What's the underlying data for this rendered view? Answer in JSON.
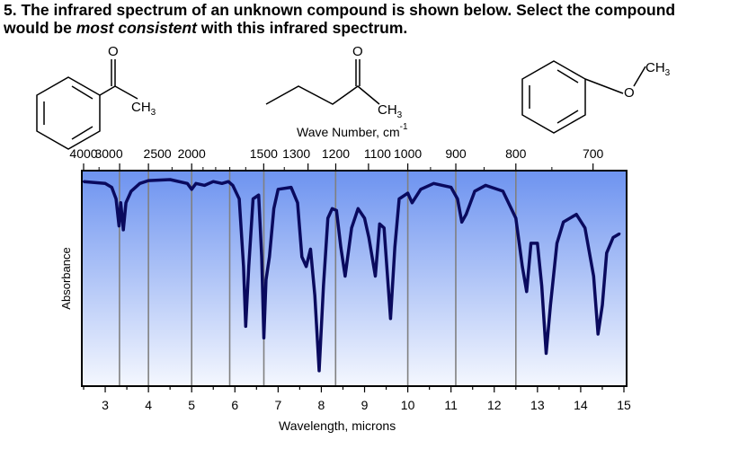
{
  "question": {
    "number": "5.",
    "part1": "The infrared spectrum of an unknown compound is shown below.  Select the compound would be ",
    "emphasis": "most consistent",
    "part2": " with this infrared spectrum."
  },
  "structures": [
    {
      "name": "acetophenone",
      "label": "CH",
      "sub": "3",
      "oxygen": "O"
    },
    {
      "name": "2-pentanone",
      "label": "CH",
      "sub": "3",
      "oxygen": "O"
    },
    {
      "name": "anisole",
      "label": "CH",
      "sub": "3",
      "oxygen": "O"
    }
  ],
  "chart_data": {
    "type": "line",
    "title": "",
    "top_axis_label": "Wave Number, cm",
    "top_axis_exponent": "-1",
    "xlabel": "Wavelength, microns",
    "ylabel": "Absorbance",
    "xlim": [
      2.5,
      15
    ],
    "x_ticks": [
      "3",
      "4",
      "5",
      "6",
      "7",
      "8",
      "9",
      "10",
      "11",
      "12",
      "13",
      "14",
      "15"
    ],
    "top_ticks": [
      "4000",
      "3000",
      "2500",
      "2000",
      "1500",
      "1300",
      "1200",
      "1100",
      "1000",
      "900",
      "800",
      "700"
    ],
    "top_tick_values": [
      4000,
      3000,
      2500,
      2000,
      1500,
      1300,
      1200,
      1100,
      1000,
      900,
      800,
      700
    ],
    "vertical_lines_microns": [
      3.33,
      4.0,
      5.0,
      5.88,
      6.67,
      8.33,
      10.0,
      11.11,
      12.5
    ],
    "colors": {
      "line": "#0a0a5e",
      "bg_top": "#6d93f0",
      "bg_bottom": "#f4f7fe",
      "grid": "#808080"
    },
    "series": [
      {
        "values": [
          [
            2.5,
            0.01
          ],
          [
            3.0,
            0.02
          ],
          [
            3.15,
            0.04
          ],
          [
            3.25,
            0.1
          ],
          [
            3.32,
            0.24
          ],
          [
            3.36,
            0.12
          ],
          [
            3.42,
            0.26
          ],
          [
            3.48,
            0.12
          ],
          [
            3.6,
            0.06
          ],
          [
            3.8,
            0.02
          ],
          [
            4.0,
            0.005
          ],
          [
            4.5,
            0.0
          ],
          [
            4.9,
            0.02
          ],
          [
            5.0,
            0.05
          ],
          [
            5.1,
            0.02
          ],
          [
            5.3,
            0.03
          ],
          [
            5.5,
            0.01
          ],
          [
            5.7,
            0.02
          ],
          [
            5.85,
            0.01
          ],
          [
            5.95,
            0.03
          ],
          [
            6.1,
            0.1
          ],
          [
            6.2,
            0.45
          ],
          [
            6.25,
            0.76
          ],
          [
            6.32,
            0.45
          ],
          [
            6.42,
            0.1
          ],
          [
            6.55,
            0.08
          ],
          [
            6.62,
            0.4
          ],
          [
            6.67,
            0.82
          ],
          [
            6.72,
            0.52
          ],
          [
            6.8,
            0.4
          ],
          [
            6.9,
            0.15
          ],
          [
            7.0,
            0.05
          ],
          [
            7.3,
            0.04
          ],
          [
            7.45,
            0.12
          ],
          [
            7.55,
            0.4
          ],
          [
            7.65,
            0.45
          ],
          [
            7.75,
            0.36
          ],
          [
            7.85,
            0.6
          ],
          [
            7.95,
            0.99
          ],
          [
            8.05,
            0.55
          ],
          [
            8.15,
            0.2
          ],
          [
            8.25,
            0.15
          ],
          [
            8.35,
            0.16
          ],
          [
            8.45,
            0.35
          ],
          [
            8.55,
            0.5
          ],
          [
            8.7,
            0.25
          ],
          [
            8.85,
            0.15
          ],
          [
            9.0,
            0.2
          ],
          [
            9.1,
            0.3
          ],
          [
            9.25,
            0.5
          ],
          [
            9.35,
            0.23
          ],
          [
            9.45,
            0.25
          ],
          [
            9.6,
            0.72
          ],
          [
            9.7,
            0.35
          ],
          [
            9.8,
            0.1
          ],
          [
            10.0,
            0.07
          ],
          [
            10.1,
            0.12
          ],
          [
            10.3,
            0.05
          ],
          [
            10.6,
            0.02
          ],
          [
            11.0,
            0.04
          ],
          [
            11.15,
            0.1
          ],
          [
            11.25,
            0.22
          ],
          [
            11.35,
            0.18
          ],
          [
            11.55,
            0.06
          ],
          [
            11.8,
            0.03
          ],
          [
            12.2,
            0.06
          ],
          [
            12.5,
            0.2
          ],
          [
            12.65,
            0.45
          ],
          [
            12.75,
            0.58
          ],
          [
            12.85,
            0.33
          ],
          [
            13.0,
            0.33
          ],
          [
            13.1,
            0.55
          ],
          [
            13.2,
            0.9
          ],
          [
            13.3,
            0.65
          ],
          [
            13.45,
            0.33
          ],
          [
            13.6,
            0.22
          ],
          [
            13.9,
            0.18
          ],
          [
            14.1,
            0.25
          ],
          [
            14.3,
            0.5
          ],
          [
            14.4,
            0.8
          ],
          [
            14.5,
            0.65
          ],
          [
            14.6,
            0.38
          ],
          [
            14.75,
            0.3
          ],
          [
            14.9,
            0.28
          ]
        ]
      }
    ]
  }
}
